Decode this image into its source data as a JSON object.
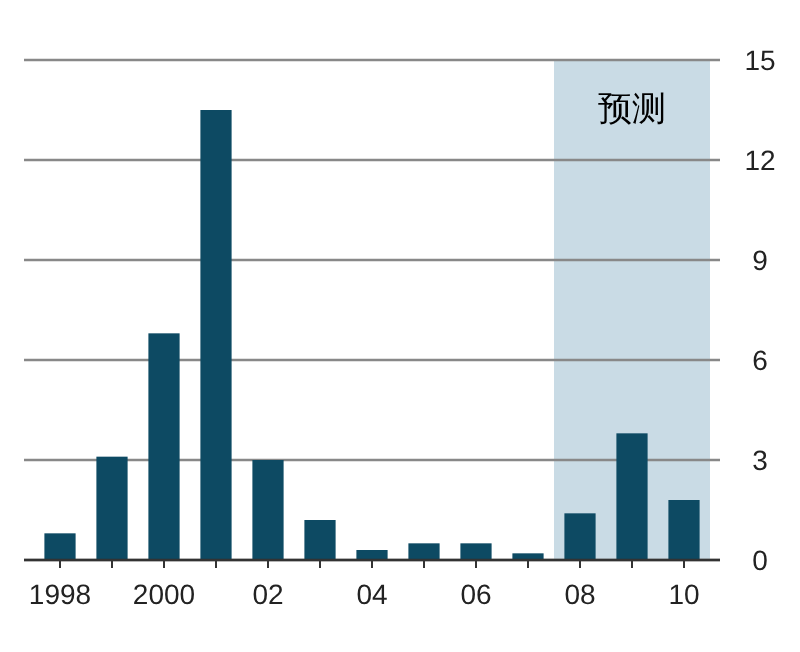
{
  "chart_data": {
    "type": "bar",
    "categories": [
      "1998",
      null,
      "2000",
      null,
      "02",
      null,
      "04",
      null,
      "06",
      null,
      "08",
      null,
      "10"
    ],
    "values": [
      0.8,
      3.1,
      6.8,
      13.5,
      3.0,
      1.2,
      0.3,
      0.5,
      0.5,
      0.2,
      1.4,
      3.8,
      1.8
    ],
    "color": "#0d4a63",
    "ylim": [
      0,
      15
    ],
    "yticks": [
      0,
      3,
      6,
      9,
      12,
      15
    ],
    "grid": "y",
    "bands": [
      {
        "axis": "x",
        "from": "08",
        "to": "10",
        "label": "预测",
        "color": "#c9dbe5"
      }
    ]
  }
}
